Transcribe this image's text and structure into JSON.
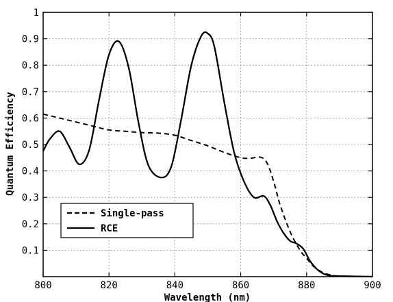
{
  "chart_data": {
    "type": "line",
    "xlabel": "Wavelength (nm)",
    "ylabel": "Quantum Efficiency",
    "xlim": [
      800,
      900
    ],
    "ylim": [
      0,
      1
    ],
    "xticks": [
      "800",
      "820",
      "840",
      "860",
      "880",
      "900"
    ],
    "yticks": [
      "0.1",
      "0.2",
      "0.3",
      "0.4",
      "0.5",
      "0.6",
      "0.7",
      "0.8",
      "0.9",
      "1"
    ],
    "grid": true,
    "legend_position": "lower-left",
    "series": [
      {
        "name": "Single-pass",
        "style": "dashed",
        "x": [
          800,
          805,
          810,
          815,
          820,
          825,
          830,
          835,
          840,
          845,
          850,
          855,
          860,
          863,
          866,
          868,
          870,
          872,
          875,
          878,
          880,
          882,
          885,
          888,
          890,
          900
        ],
        "y": [
          0.615,
          0.6,
          0.585,
          0.57,
          0.555,
          0.55,
          0.545,
          0.543,
          0.535,
          0.515,
          0.495,
          0.47,
          0.45,
          0.448,
          0.452,
          0.43,
          0.36,
          0.27,
          0.17,
          0.1,
          0.07,
          0.04,
          0.015,
          0.005,
          0.002,
          0.0
        ]
      },
      {
        "name": "RCE",
        "style": "solid",
        "x": [
          800,
          802,
          805,
          808,
          811,
          814,
          817,
          820,
          823,
          826,
          829,
          832,
          836,
          839,
          842,
          845,
          848,
          850,
          852,
          855,
          858,
          861,
          864,
          867,
          869,
          871,
          873,
          875,
          877,
          879,
          881,
          883,
          885,
          887,
          890,
          900
        ],
        "y": [
          0.475,
          0.52,
          0.55,
          0.49,
          0.425,
          0.48,
          0.67,
          0.84,
          0.89,
          0.79,
          0.58,
          0.42,
          0.375,
          0.42,
          0.6,
          0.8,
          0.91,
          0.92,
          0.87,
          0.66,
          0.47,
          0.36,
          0.3,
          0.305,
          0.27,
          0.21,
          0.165,
          0.135,
          0.125,
          0.105,
          0.06,
          0.03,
          0.012,
          0.004,
          0.002,
          0.0
        ]
      }
    ]
  }
}
